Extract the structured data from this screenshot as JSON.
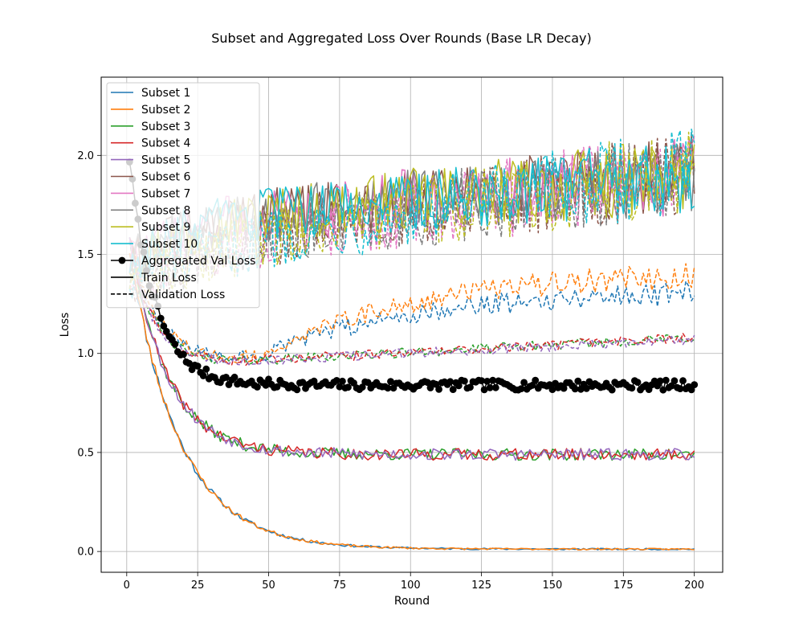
{
  "chart_data": {
    "type": "line",
    "title": "Subset and Aggregated Loss Over Rounds (Base LR Decay)",
    "xlabel": "Round",
    "ylabel": "Loss",
    "xlim": [
      -9,
      210
    ],
    "ylim": [
      -0.105,
      2.395
    ],
    "xticks": [
      0,
      25,
      50,
      75,
      100,
      125,
      150,
      175,
      200
    ],
    "yticks": [
      0.0,
      0.5,
      1.0,
      1.5,
      2.0
    ],
    "ytick_labels": [
      "0.0",
      "0.5",
      "1.0",
      "1.5",
      "2.0"
    ],
    "grid": true,
    "legend_position": "top-left",
    "rounds": [
      1,
      200
    ],
    "series": [
      {
        "name": "Subset 1",
        "color": "#1f77b4",
        "group": "fast",
        "val_plateau": 1.33,
        "seed": 11
      },
      {
        "name": "Subset 2",
        "color": "#ff7f0e",
        "group": "fast",
        "val_plateau": 1.42,
        "seed": 23
      },
      {
        "name": "Subset 3",
        "color": "#2ca02c",
        "group": "mid",
        "val_plateau": 1.08,
        "seed": 37
      },
      {
        "name": "Subset 4",
        "color": "#d62728",
        "group": "mid",
        "val_plateau": 1.08,
        "seed": 41
      },
      {
        "name": "Subset 5",
        "color": "#9467bd",
        "group": "mid",
        "val_plateau": 1.07,
        "seed": 53
      },
      {
        "name": "Subset 6",
        "color": "#8c564b",
        "group": "slow",
        "seed": 61
      },
      {
        "name": "Subset 7",
        "color": "#e377c2",
        "group": "slow",
        "seed": 73
      },
      {
        "name": "Subset 8",
        "color": "#7f7f7f",
        "group": "slow",
        "seed": 89
      },
      {
        "name": "Subset 9",
        "color": "#bcbd22",
        "group": "slow",
        "seed": 97
      },
      {
        "name": "Subset 10",
        "color": "#17becf",
        "group": "slow",
        "seed": 103
      }
    ],
    "aggregated": {
      "name": "Aggregated Val Loss",
      "color": "#000000",
      "start": 1.98,
      "plateau": 0.84,
      "seed": 7
    },
    "legend_extra": [
      {
        "label": "Train Loss",
        "style": "solid"
      },
      {
        "label": "Validation Loss",
        "style": "dashed"
      }
    ]
  }
}
